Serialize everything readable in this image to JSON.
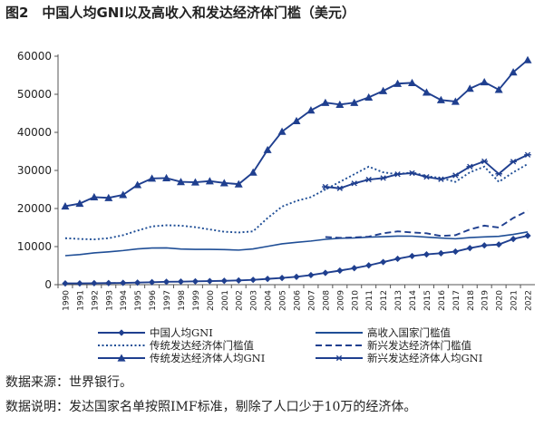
{
  "figure": {
    "title": "图2　中国人均GNI以及高收入和发达经济体门槛（美元）",
    "source": "数据来源：世界银行。",
    "note": "数据说明：发达国家名单按照IMF标准，剔除了人口少于10万的经济体。"
  },
  "chart_data": {
    "type": "line",
    "x": [
      1990,
      1991,
      1992,
      1993,
      1994,
      1995,
      1996,
      1997,
      1998,
      1999,
      2000,
      2001,
      2002,
      2003,
      2004,
      2005,
      2006,
      2007,
      2008,
      2009,
      2010,
      2011,
      2012,
      2013,
      2014,
      2015,
      2016,
      2017,
      2018,
      2019,
      2020,
      2021,
      2022
    ],
    "xticks": [
      "1990",
      "1991",
      "1992",
      "1993",
      "1994",
      "1995",
      "1996",
      "1997",
      "1998",
      "1999",
      "2000",
      "2001",
      "2002",
      "2003",
      "2004",
      "2005",
      "2006",
      "2007",
      "2008",
      "2009",
      "2010",
      "2011",
      "2012",
      "2013",
      "2014",
      "2015",
      "2016",
      "2017",
      "2018",
      "2019",
      "2020",
      "2021",
      "2022"
    ],
    "ylim": [
      0,
      60000
    ],
    "yticks": [
      0,
      10000,
      20000,
      30000,
      40000,
      50000,
      60000
    ],
    "ytick_labels": [
      "0",
      "10000",
      "20000",
      "30000",
      "40000",
      "50000",
      "60000"
    ],
    "grid": false,
    "legend_position": "bottom",
    "series": [
      {
        "name": "中国人均GNI",
        "color": "#1f3f8f",
        "line": "solid",
        "marker": "diamond",
        "values": [
          330,
          330,
          380,
          420,
          470,
          540,
          650,
          750,
          800,
          870,
          940,
          1010,
          1110,
          1270,
          1520,
          1760,
          2060,
          2510,
          3100,
          3690,
          4340,
          5060,
          5940,
          6800,
          7520,
          7950,
          8250,
          8690,
          9600,
          10310,
          10550,
          12000,
          12850
        ]
      },
      {
        "name": "高收入国家门槛值",
        "color": "#1f4e96",
        "line": "solid",
        "marker": "none",
        "values": [
          7620,
          7910,
          8355,
          8626,
          8955,
          9385,
          9635,
          9655,
          9360,
          9265,
          9265,
          9205,
          9075,
          9385,
          10065,
          10725,
          11115,
          11455,
          11905,
          12195,
          12275,
          12475,
          12615,
          12745,
          12735,
          12475,
          12235,
          12055,
          12375,
          12535,
          12695,
          13205,
          13845
        ]
      },
      {
        "name": "传统发达经济体门槛值",
        "color": "#1f4e96",
        "line": "dotted",
        "marker": "none",
        "values": [
          12200,
          12000,
          11900,
          12200,
          13000,
          14200,
          15300,
          15600,
          15500,
          15100,
          14500,
          13900,
          13700,
          14000,
          17500,
          20500,
          22000,
          23000,
          25000,
          27000,
          29000,
          31000,
          29500,
          29000,
          29500,
          28500,
          28000,
          27000,
          29500,
          31000,
          27000,
          29500,
          31700
        ]
      },
      {
        "name": "新兴发达经济体门槛值",
        "color": "#1f3f8f",
        "line": "dashed",
        "marker": "none",
        "values": [
          null,
          null,
          null,
          null,
          null,
          null,
          null,
          null,
          null,
          null,
          null,
          null,
          null,
          null,
          null,
          null,
          null,
          null,
          12500,
          12300,
          12400,
          12600,
          13500,
          14000,
          13700,
          13500,
          12800,
          13000,
          14500,
          15500,
          15000,
          17500,
          19400
        ]
      },
      {
        "name": "传统发达经济体人均GNI",
        "color": "#1f3f8f",
        "line": "solid",
        "marker": "triangle",
        "values": [
          20600,
          21300,
          23000,
          22800,
          23600,
          26200,
          27900,
          28000,
          27000,
          26900,
          27200,
          26700,
          26400,
          29500,
          35400,
          40200,
          43000,
          45800,
          47800,
          47300,
          47800,
          49200,
          50900,
          52800,
          53000,
          50500,
          48500,
          48100,
          51500,
          53200,
          51200,
          55800,
          59000
        ]
      },
      {
        "name": "新兴发达经济体人均GNI",
        "color": "#1f3f8f",
        "line": "solid",
        "marker": "star",
        "values": [
          null,
          null,
          null,
          null,
          null,
          null,
          null,
          null,
          null,
          null,
          null,
          null,
          null,
          null,
          null,
          null,
          null,
          null,
          25700,
          25300,
          26600,
          27600,
          28000,
          29000,
          29300,
          28300,
          27700,
          28700,
          31000,
          32400,
          29100,
          32300,
          34100
        ]
      }
    ]
  }
}
